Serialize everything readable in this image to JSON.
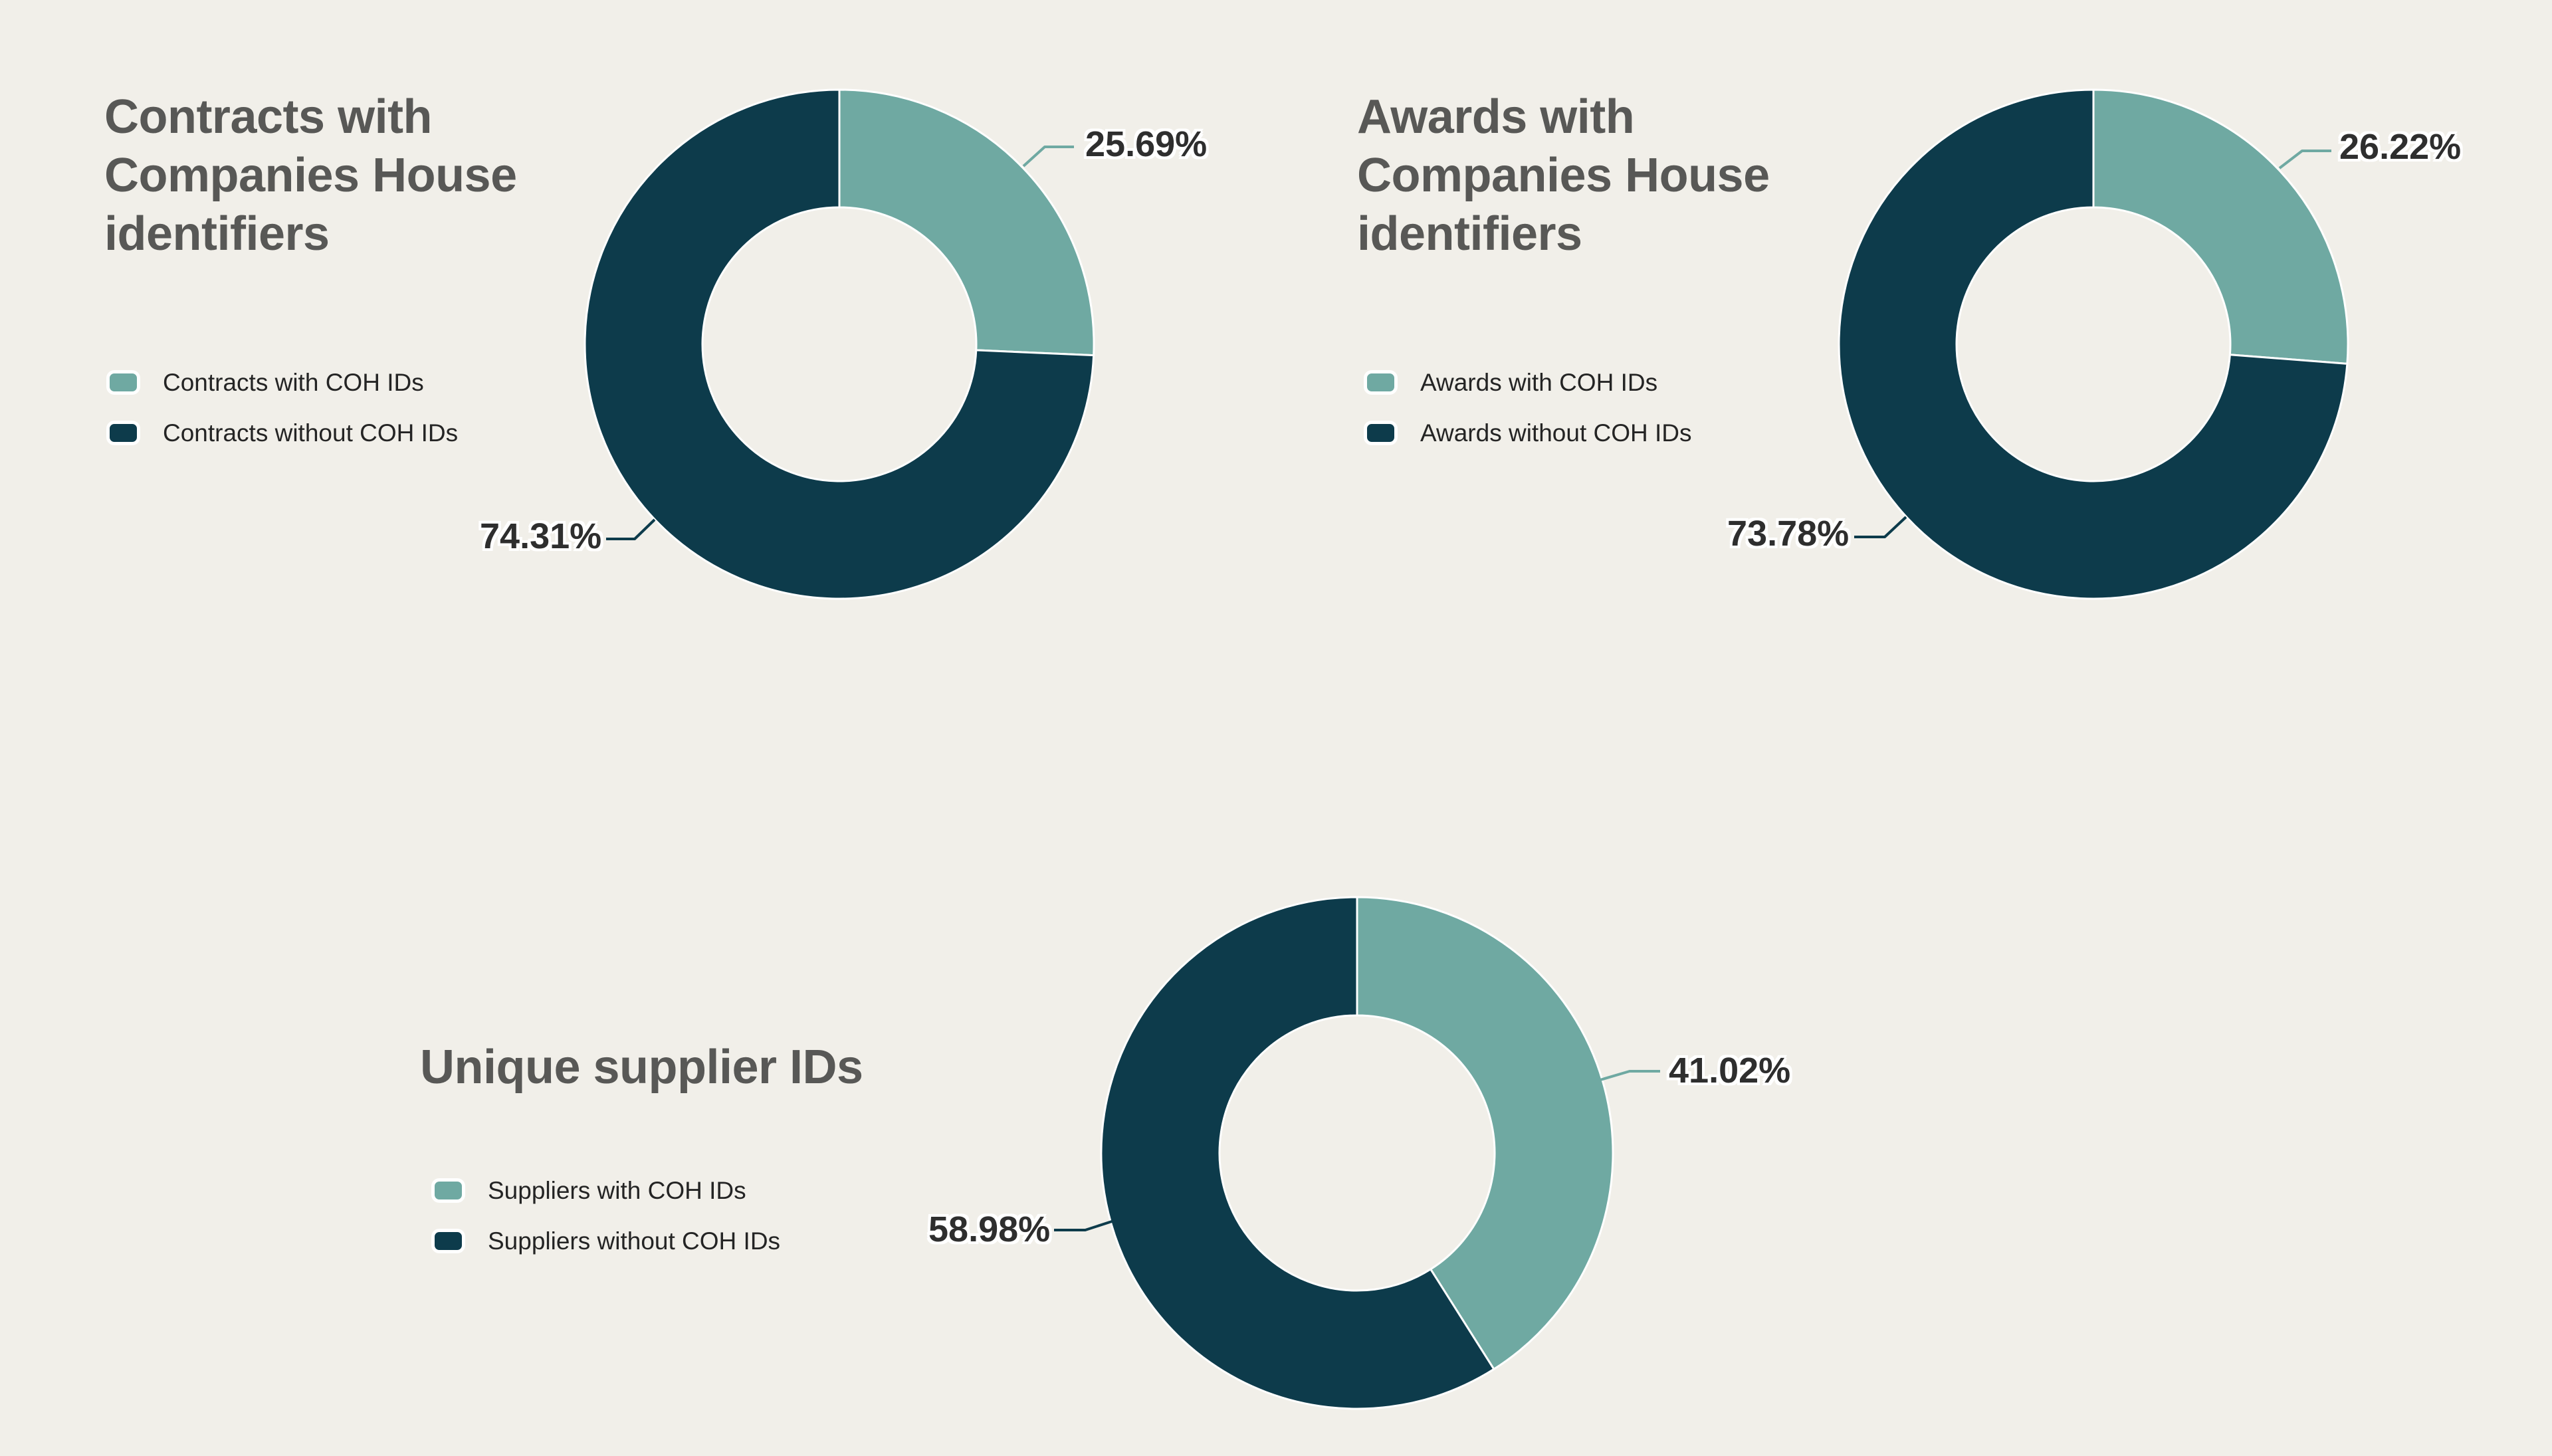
{
  "page": {
    "background": "#F1EFE9",
    "slice_border_color": "#FFFFFF"
  },
  "chart_data": [
    {
      "type": "pie",
      "donut": true,
      "title": "Contracts with\nCompanies House\nidentifiers",
      "legend_position": "left",
      "start_angle_deg": 0,
      "direction": "clockwise",
      "slices": [
        {
          "label": "Contracts with COH IDs",
          "value": 25.69,
          "display": "25.69%",
          "color": "#6FA9A2"
        },
        {
          "label": "Contracts without COH IDs",
          "value": 74.31,
          "display": "74.31%",
          "color": "#0D3B4B"
        }
      ]
    },
    {
      "type": "pie",
      "donut": true,
      "title": "Awards with\nCompanies House\nidentifiers",
      "legend_position": "left",
      "start_angle_deg": 0,
      "direction": "clockwise",
      "slices": [
        {
          "label": "Awards with COH IDs",
          "value": 26.22,
          "display": "26.22%",
          "color": "#6FA9A2"
        },
        {
          "label": "Awards without COH IDs",
          "value": 73.78,
          "display": "73.78%",
          "color": "#0D3B4B"
        }
      ]
    },
    {
      "type": "pie",
      "donut": true,
      "title": "Unique supplier IDs",
      "legend_position": "left",
      "start_angle_deg": 0,
      "direction": "clockwise",
      "slices": [
        {
          "label": "Suppliers with COH IDs",
          "value": 41.02,
          "display": "41.02%",
          "color": "#6FA9A2"
        },
        {
          "label": "Suppliers without COH IDs",
          "value": 58.98,
          "display": "58.98%",
          "color": "#0D3B4B"
        }
      ]
    }
  ]
}
